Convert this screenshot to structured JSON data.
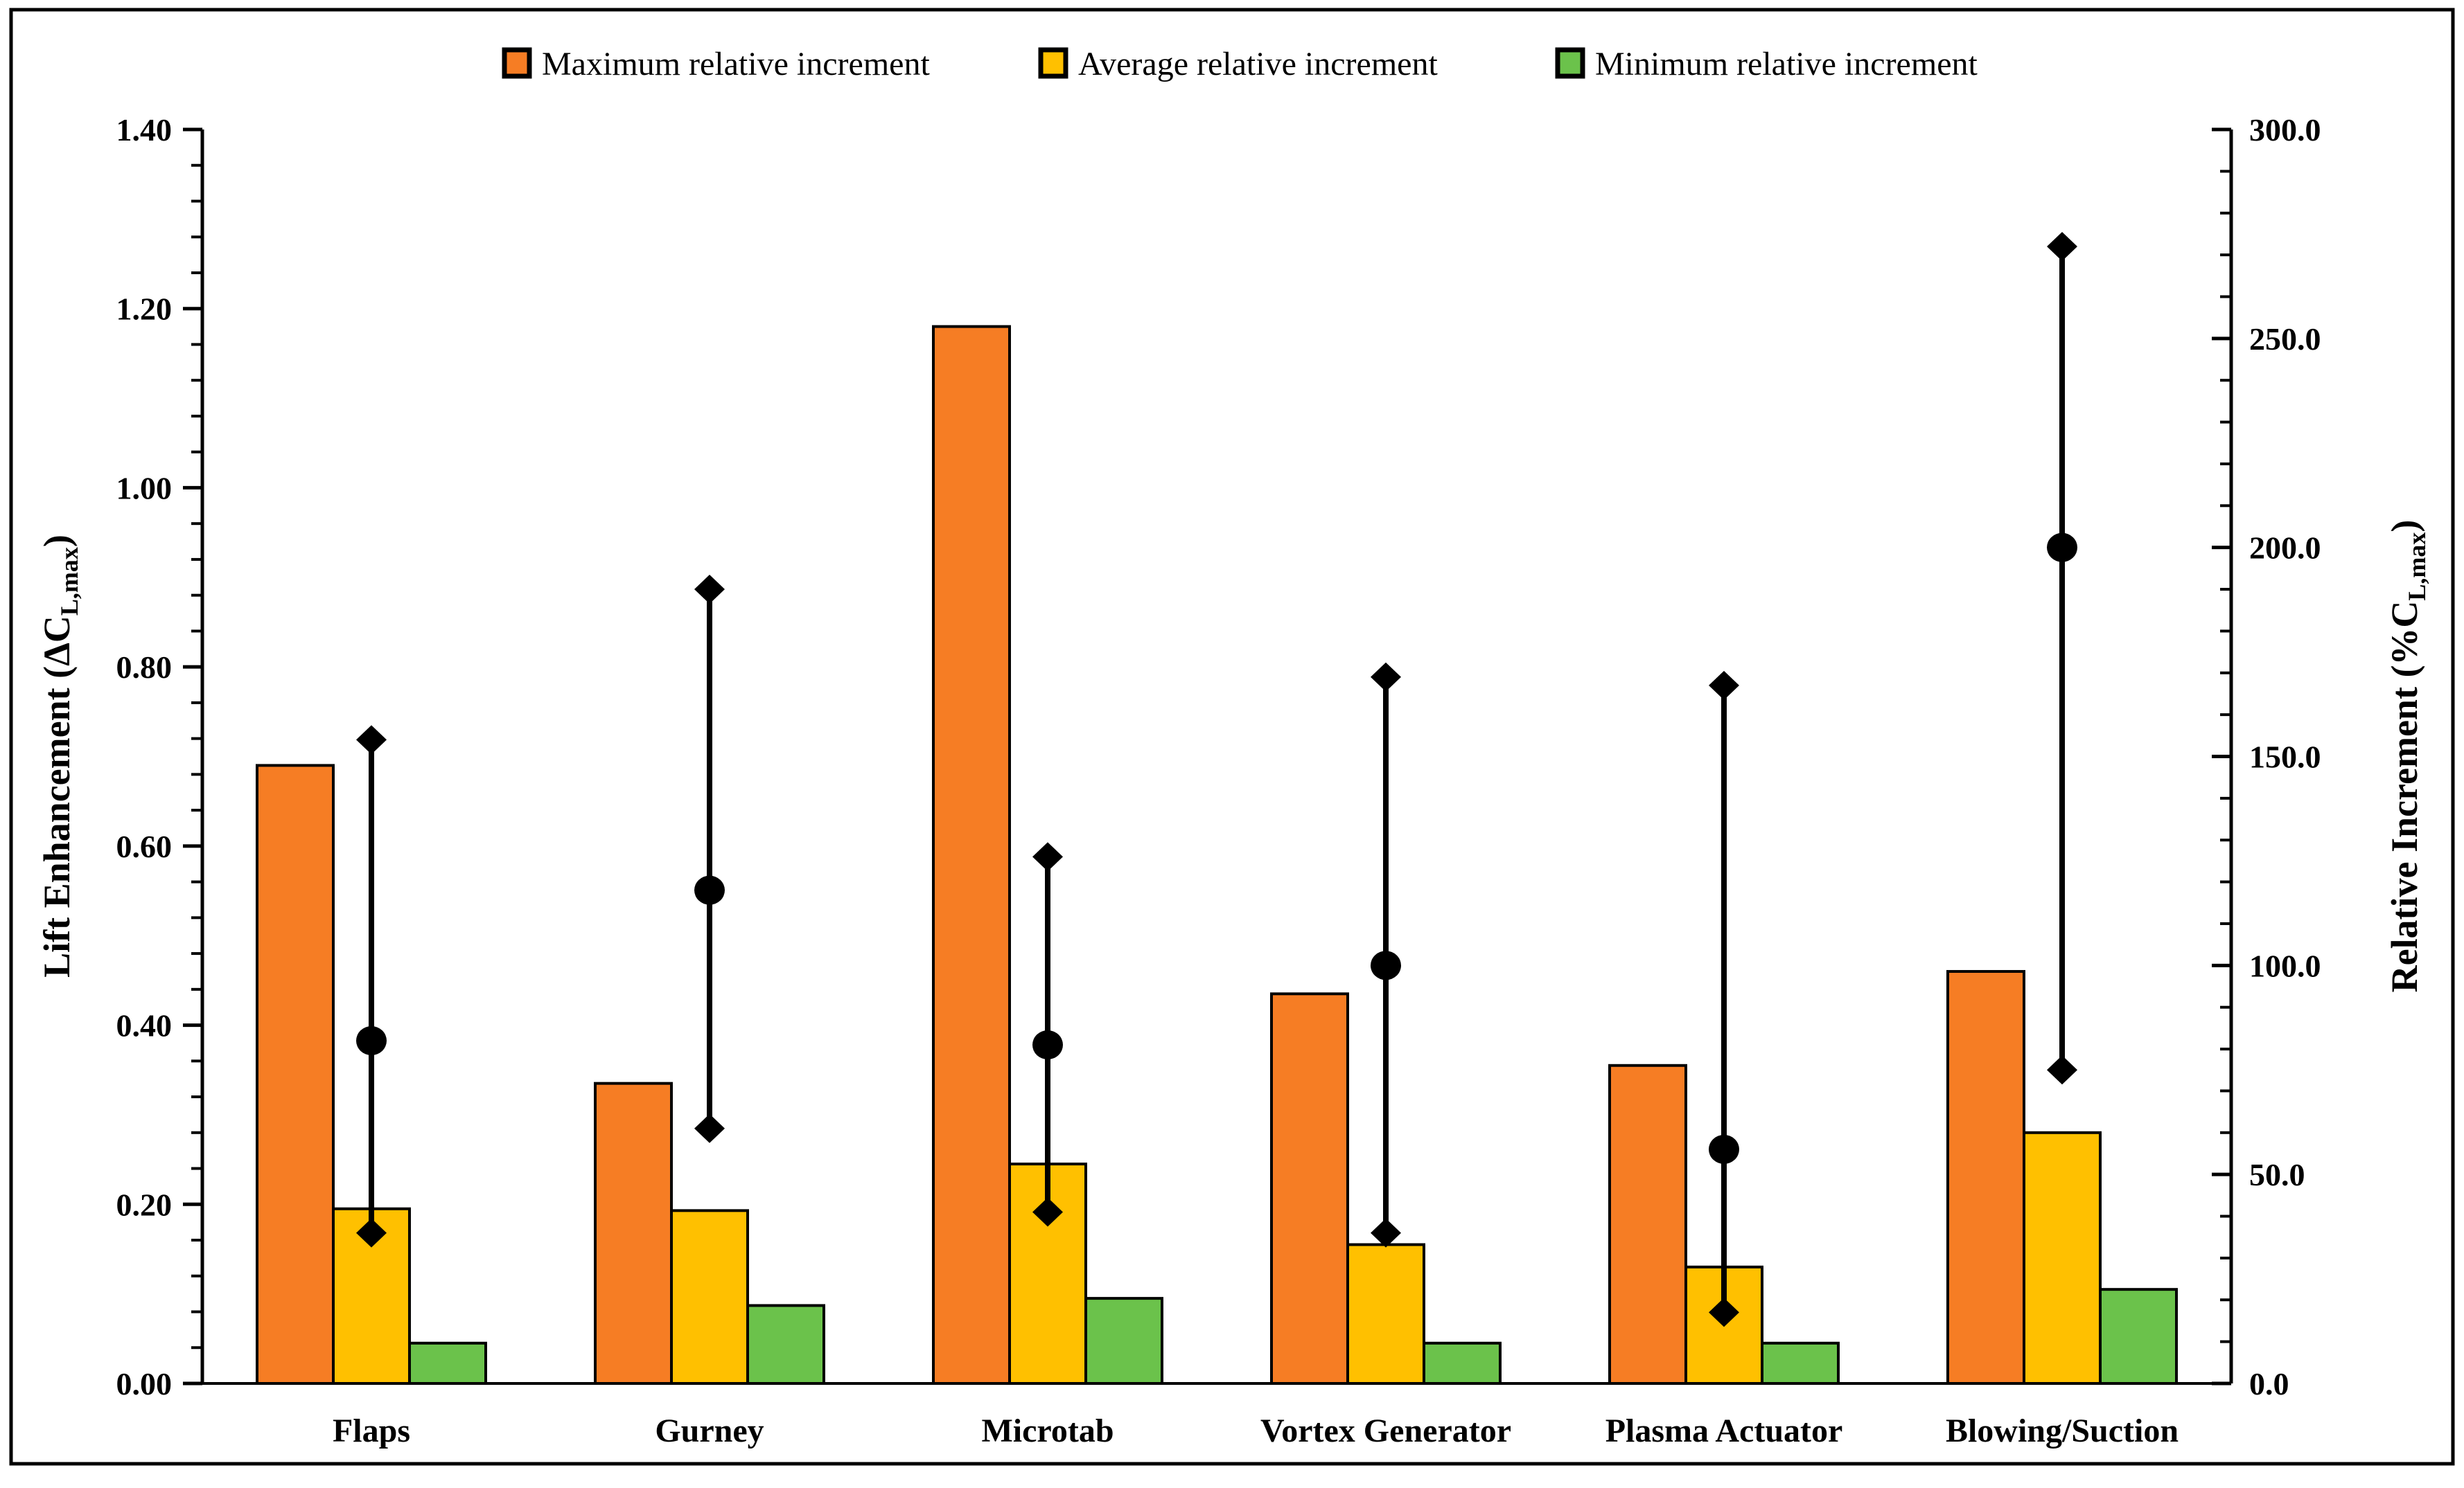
{
  "legend": {
    "items": [
      {
        "label": "Maximum relative increment",
        "color": "#F67D24"
      },
      {
        "label": "Average relative increment",
        "color": "#FFC000"
      },
      {
        "label": "Minimum relative increment",
        "color": "#6BC24B"
      }
    ]
  },
  "chart_data": {
    "type": "bar",
    "subtype": "clustered-bars-with-range-whisker-overlay",
    "title": "",
    "grid": false,
    "legend_position": "top",
    "categories": [
      "Flaps",
      "Gurney",
      "Microtab",
      "Vortex Generator",
      "Plasma Actuator",
      "Blowing/Suction"
    ],
    "series": [
      {
        "name": "Maximum relative increment",
        "axis": "left",
        "color": "#F67D24",
        "values": [
          0.69,
          0.335,
          1.18,
          0.435,
          0.355,
          0.46
        ]
      },
      {
        "name": "Average relative increment",
        "axis": "left",
        "color": "#FFC000",
        "values": [
          0.195,
          0.193,
          0.245,
          0.155,
          0.13,
          0.28
        ]
      },
      {
        "name": "Minimum relative increment",
        "axis": "left",
        "color": "#6BC24B",
        "values": [
          0.045,
          0.087,
          0.095,
          0.045,
          0.045,
          0.105
        ]
      }
    ],
    "range_overlay": {
      "axis": "right",
      "color": "#000000",
      "description": "vertical line centered on middle bar; diamond markers at max and min, filled circle at average",
      "max_values": [
        154,
        190,
        126,
        169,
        167,
        272
      ],
      "avg_values": [
        82,
        118,
        81,
        100,
        56,
        200
      ],
      "min_values": [
        36,
        61,
        41,
        36,
        17,
        75
      ]
    },
    "axes": {
      "left": {
        "title_pre": "Lift Enhancement (ΔC",
        "title_sub": "L,max",
        "title_post": ")",
        "min": 0,
        "max": 1.4,
        "major_step": 0.2,
        "minor_per_major": 5,
        "tick_labels": [
          "0.00",
          "0.20",
          "0.40",
          "0.60",
          "0.80",
          "1.00",
          "1.20",
          "1.40"
        ]
      },
      "right": {
        "title_pre": "Relative Increment (%C",
        "title_sub": "L,max",
        "title_post": ")",
        "min": 0,
        "max": 300,
        "major_step": 50,
        "minor_per_major": 5,
        "tick_labels": [
          "0.0",
          "50.0",
          "100.0",
          "150.0",
          "200.0",
          "250.0",
          "300.0"
        ]
      }
    }
  }
}
